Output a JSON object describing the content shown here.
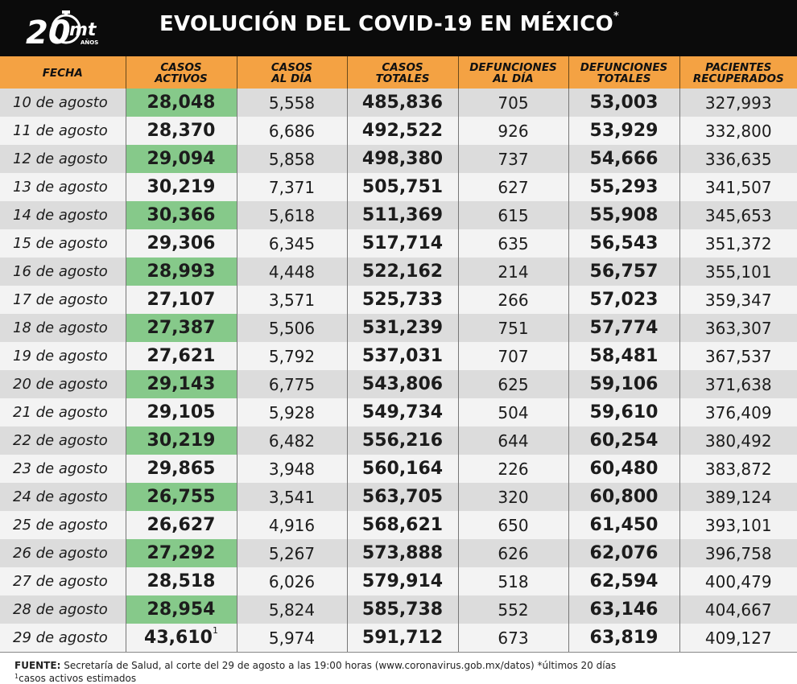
{
  "logo": {
    "number": "20",
    "brand": "mt",
    "years": "AÑOS"
  },
  "title": {
    "text": "EVOLUCIÓN DEL COVID-19 EN MÉXICO",
    "mark": "*"
  },
  "columns": [
    [
      "FECHA"
    ],
    [
      "CASOS",
      "ACTIVOS"
    ],
    [
      "CASOS",
      "AL DÍA"
    ],
    [
      "CASOS",
      "TOTALES"
    ],
    [
      "DEFUNCIONES",
      "AL DÍA"
    ],
    [
      "DEFUNCIONES",
      "TOTALES"
    ],
    [
      "PACIENTES",
      "RECUPERADOS"
    ]
  ],
  "rows": [
    [
      "10 de agosto",
      "28,048",
      "5,558",
      "485,836",
      "705",
      "53,003",
      "327,993"
    ],
    [
      "11 de agosto",
      "28,370",
      "6,686",
      "492,522",
      "926",
      "53,929",
      "332,800"
    ],
    [
      "12 de agosto",
      "29,094",
      "5,858",
      "498,380",
      "737",
      "54,666",
      "336,635"
    ],
    [
      "13 de agosto",
      "30,219",
      "7,371",
      "505,751",
      "627",
      "55,293",
      "341,507"
    ],
    [
      "14 de agosto",
      "30,366",
      "5,618",
      "511,369",
      "615",
      "55,908",
      "345,653"
    ],
    [
      "15 de agosto",
      "29,306",
      "6,345",
      "517,714",
      "635",
      "56,543",
      "351,372"
    ],
    [
      "16 de agosto",
      "28,993",
      "4,448",
      "522,162",
      "214",
      "56,757",
      "355,101"
    ],
    [
      "17 de agosto",
      "27,107",
      "3,571",
      "525,733",
      "266",
      "57,023",
      "359,347"
    ],
    [
      "18 de agosto",
      "27,387",
      "5,506",
      "531,239",
      "751",
      "57,774",
      "363,307"
    ],
    [
      "19 de agosto",
      "27,621",
      "5,792",
      "537,031",
      "707",
      "58,481",
      "367,537"
    ],
    [
      "20 de agosto",
      "29,143",
      "6,775",
      "543,806",
      "625",
      "59,106",
      "371,638"
    ],
    [
      "21 de agosto",
      "29,105",
      "5,928",
      "549,734",
      "504",
      "59,610",
      "376,409"
    ],
    [
      "22 de agosto",
      "30,219",
      "6,482",
      "556,216",
      "644",
      "60,254",
      "380,492"
    ],
    [
      "23 de agosto",
      "29,865",
      "3,948",
      "560,164",
      "226",
      "60,480",
      "383,872"
    ],
    [
      "24 de agosto",
      "26,755",
      "3,541",
      "563,705",
      "320",
      "60,800",
      "389,124"
    ],
    [
      "25 de agosto",
      "26,627",
      "4,916",
      "568,621",
      "650",
      "61,450",
      "393,101"
    ],
    [
      "26 de agosto",
      "27,292",
      "5,267",
      "573,888",
      "626",
      "62,076",
      "396,758"
    ],
    [
      "27 de agosto",
      "28,518",
      "6,026",
      "579,914",
      "518",
      "62,594",
      "400,479"
    ],
    [
      "28 de agosto",
      "28,954",
      "5,824",
      "585,738",
      "552",
      "63,146",
      "404,667"
    ],
    [
      "29 de agosto",
      "43,610",
      "5,974",
      "591,712",
      "673",
      "63,819",
      "409,127"
    ]
  ],
  "last_row_mark": "1",
  "footer": {
    "source_label": "FUENTE:",
    "source_text": "Secretaría de Salud, al corte del 29 de agosto a las 19:00 horas (www.coronavirus.gob.mx/datos) *últimos 20 días",
    "note_mark": "1",
    "note_text": "casos activos estimados"
  },
  "colors": {
    "header_bg": "#0b0b0b",
    "column_header_bg": "#f4a243",
    "active_highlight": "#86c98a",
    "row_dark": "#dcdcdc",
    "row_light": "#f3f3f3"
  }
}
